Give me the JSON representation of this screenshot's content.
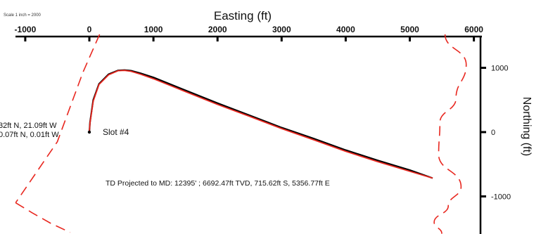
{
  "chart_data": {
    "type": "line",
    "scale_note": "Scale 1 inch = 2000",
    "xlabel": "Easting (ft)",
    "ylabel": "Northing (ft)",
    "x_ticks": [
      -1000,
      0,
      1000,
      2000,
      3000,
      4000,
      5000,
      6000
    ],
    "y_ticks": [
      1000,
      0,
      -1000
    ],
    "xlim": [
      -1400,
      6000
    ],
    "ylim": [
      -1650,
      1650
    ],
    "series": [
      {
        "role": "actual",
        "color": "#000000",
        "x": [
          0,
          10,
          60,
          150,
          300,
          450,
          550,
          650,
          800,
          1000,
          1500,
          2000,
          2500,
          3000,
          3500,
          4000,
          4500,
          5000,
          5356.77
        ],
        "y": [
          0,
          150,
          500,
          750,
          900,
          960,
          965,
          955,
          915,
          850,
          650,
          450,
          260,
          70,
          -100,
          -280,
          -440,
          -590,
          -715.62
        ]
      },
      {
        "role": "projected",
        "color": "#e8271f",
        "x": [
          0,
          10,
          60,
          150,
          300,
          450,
          550,
          650,
          800,
          1000,
          1500,
          2000,
          2500,
          3000,
          3500,
          4000,
          4500,
          5000,
          5356.77
        ],
        "y": [
          0,
          140,
          480,
          740,
          890,
          955,
          960,
          945,
          900,
          830,
          630,
          430,
          245,
          55,
          -120,
          -300,
          -460,
          -610,
          -715.62
        ]
      }
    ],
    "annotations": {
      "slot": "Slot #4",
      "left_line1": "32ft N, 21.09ft W",
      "left_line2": "0.07ft N, 0.01ft W",
      "td_label": "TD Projected to MD: 12395' ; 6692.47ft TVD, 715.62ft S, 5356.77ft E"
    },
    "boundary": {
      "color": "#e8271f",
      "left_x": [
        160,
        -100,
        -500,
        -1150
      ],
      "left_y": [
        1520,
        930,
        -150,
        -1100
      ],
      "left_lower_x": [
        -1150,
        -900,
        -600,
        -300
      ],
      "left_lower_y": [
        -1100,
        -1250,
        -1420,
        -1560
      ],
      "right_x": [
        5550,
        5880,
        5720,
        5470,
        5450,
        5800,
        5600,
        5380,
        5500
      ],
      "right_y": [
        1520,
        1050,
        520,
        150,
        -350,
        -850,
        -1150,
        -1400,
        -1580
      ]
    }
  }
}
